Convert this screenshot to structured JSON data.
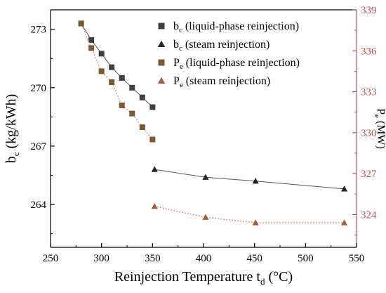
{
  "chart_data": {
    "type": "line",
    "x_axis": {
      "label_main": "Reinjection Temperature t",
      "label_sub": "d",
      "label_tail": " (°C)",
      "range": [
        250,
        550
      ],
      "ticks": [
        "250",
        "300",
        "350",
        "400",
        "450",
        "500",
        "550"
      ]
    },
    "y_axis_left": {
      "label_main": "b",
      "label_sub": "c",
      "label_tail": " (kg/kWh)",
      "range": [
        261.8,
        274
      ],
      "ticks": [
        264,
        267,
        270,
        273
      ],
      "tick_labels": [
        "264",
        "267",
        "270",
        "273"
      ]
    },
    "y_axis_right": {
      "label_main": "P",
      "label_sub": "e",
      "label_tail": " (MW)",
      "range": [
        321.6,
        339
      ],
      "ticks": [
        324,
        327,
        330,
        333,
        336,
        339
      ],
      "tick_labels": [
        "324",
        "327",
        "330",
        "333",
        "336",
        "339"
      ],
      "color": "#c0504d"
    },
    "grid": false,
    "legend_position": "top-right",
    "series": [
      {
        "key": "bc_liquid",
        "legend_main": "b",
        "legend_sub": "c",
        "legend_tail": " (liquid-phase reinjection)",
        "axis": "left",
        "marker": "square",
        "marker_color": "#404040",
        "line_color": "#555555",
        "line_style": "solid",
        "x": [
          280,
          290,
          300,
          310,
          320,
          330,
          340,
          350
        ],
        "y": [
          273.3,
          272.45,
          271.75,
          271.05,
          270.5,
          270.0,
          269.5,
          269.0
        ]
      },
      {
        "key": "bc_steam",
        "legend_main": "b",
        "legend_sub": "c",
        "legend_tail": " (steam reinjection)",
        "axis": "left",
        "marker": "triangle",
        "marker_color": "#262626",
        "line_color": "#555555",
        "line_style": "solid",
        "x": [
          352,
          402,
          451,
          538
        ],
        "y": [
          265.8,
          265.4,
          265.2,
          264.8
        ]
      },
      {
        "key": "pe_liquid",
        "legend_main": "P",
        "legend_sub": "e",
        "legend_tail": " (liquid-phase reinjection)",
        "axis": "right",
        "marker": "square",
        "marker_color": "#7a5a30",
        "line_color": "#e07070",
        "line_style": "dotted",
        "x": [
          280,
          290,
          300,
          310,
          320,
          330,
          340,
          350
        ],
        "y": [
          338.0,
          336.2,
          334.5,
          333.7,
          332.0,
          331.4,
          330.4,
          329.5
        ]
      },
      {
        "key": "pe_steam",
        "legend_main": "P",
        "legend_sub": "e",
        "legend_tail": " (steam reinjection)",
        "axis": "right",
        "marker": "triangle",
        "marker_color": "#a0623e",
        "line_color": "#e07070",
        "line_style": "dotted",
        "x": [
          352,
          402,
          451,
          538
        ],
        "y": [
          324.6,
          323.8,
          323.4,
          323.4
        ]
      }
    ]
  }
}
